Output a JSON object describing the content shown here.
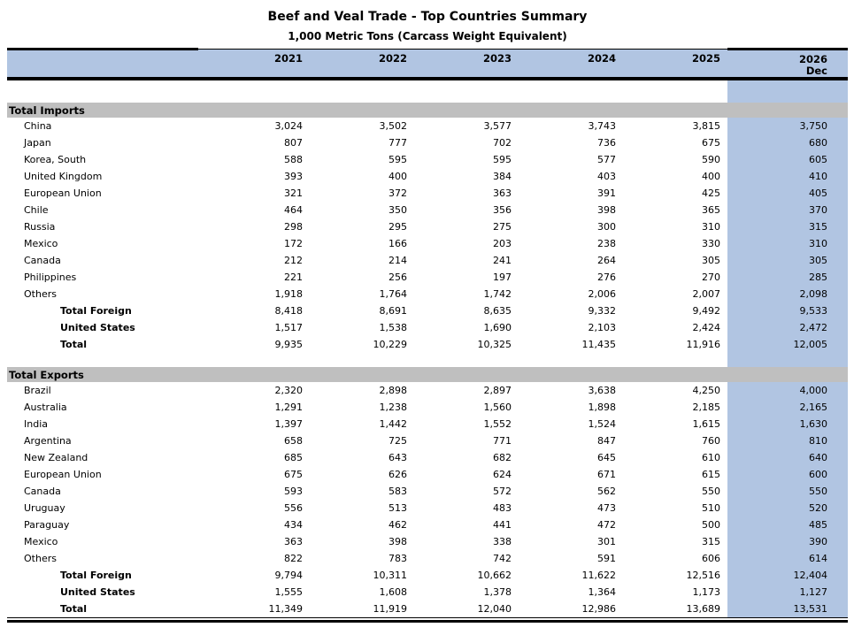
{
  "page": {
    "title": "Beef and Veal Trade - Top Countries Summary",
    "subtitle": "1,000 Metric Tons (Carcass Weight Equivalent)"
  },
  "table": {
    "columns": [
      "2021",
      "2022",
      "2023",
      "2024",
      "2025",
      "2026"
    ],
    "forecast_sublabel": "Dec",
    "sections": [
      {
        "label": "Total Imports",
        "rows": [
          {
            "label": "China",
            "style": "country",
            "values": [
              "3,024",
              "3,502",
              "3,577",
              "3,743",
              "3,815",
              "3,750"
            ]
          },
          {
            "label": "Japan",
            "style": "country",
            "values": [
              "807",
              "777",
              "702",
              "736",
              "675",
              "680"
            ]
          },
          {
            "label": "Korea, South",
            "style": "country",
            "values": [
              "588",
              "595",
              "595",
              "577",
              "590",
              "605"
            ]
          },
          {
            "label": "United Kingdom",
            "style": "country",
            "values": [
              "393",
              "400",
              "384",
              "403",
              "400",
              "410"
            ]
          },
          {
            "label": "European Union",
            "style": "country",
            "values": [
              "321",
              "372",
              "363",
              "391",
              "425",
              "405"
            ]
          },
          {
            "label": "Chile",
            "style": "country",
            "values": [
              "464",
              "350",
              "356",
              "398",
              "365",
              "370"
            ]
          },
          {
            "label": "Russia",
            "style": "country",
            "values": [
              "298",
              "295",
              "275",
              "300",
              "310",
              "315"
            ]
          },
          {
            "label": "Mexico",
            "style": "country",
            "values": [
              "172",
              "166",
              "203",
              "238",
              "330",
              "310"
            ]
          },
          {
            "label": "Canada",
            "style": "country",
            "values": [
              "212",
              "214",
              "241",
              "264",
              "305",
              "305"
            ]
          },
          {
            "label": "Philippines",
            "style": "country",
            "values": [
              "221",
              "256",
              "197",
              "276",
              "270",
              "285"
            ]
          },
          {
            "label": "Others",
            "style": "country",
            "values": [
              "1,918",
              "1,764",
              "1,742",
              "2,006",
              "2,007",
              "2,098"
            ]
          },
          {
            "label": "Total Foreign",
            "style": "total",
            "values": [
              "8,418",
              "8,691",
              "8,635",
              "9,332",
              "9,492",
              "9,533"
            ]
          },
          {
            "label": "United States",
            "style": "total",
            "values": [
              "1,517",
              "1,538",
              "1,690",
              "2,103",
              "2,424",
              "2,472"
            ]
          },
          {
            "label": "Total",
            "style": "total",
            "values": [
              "9,935",
              "10,229",
              "10,325",
              "11,435",
              "11,916",
              "12,005"
            ]
          }
        ]
      },
      {
        "label": "Total Exports",
        "rows": [
          {
            "label": "Brazil",
            "style": "country",
            "values": [
              "2,320",
              "2,898",
              "2,897",
              "3,638",
              "4,250",
              "4,000"
            ]
          },
          {
            "label": "Australia",
            "style": "country",
            "values": [
              "1,291",
              "1,238",
              "1,560",
              "1,898",
              "2,185",
              "2,165"
            ]
          },
          {
            "label": "India",
            "style": "country",
            "values": [
              "1,397",
              "1,442",
              "1,552",
              "1,524",
              "1,615",
              "1,630"
            ]
          },
          {
            "label": "Argentina",
            "style": "country",
            "values": [
              "658",
              "725",
              "771",
              "847",
              "760",
              "810"
            ]
          },
          {
            "label": "New Zealand",
            "style": "country",
            "values": [
              "685",
              "643",
              "682",
              "645",
              "610",
              "640"
            ]
          },
          {
            "label": "European Union",
            "style": "country",
            "values": [
              "675",
              "626",
              "624",
              "671",
              "615",
              "600"
            ]
          },
          {
            "label": "Canada",
            "style": "country",
            "values": [
              "593",
              "583",
              "572",
              "562",
              "550",
              "550"
            ]
          },
          {
            "label": "Uruguay",
            "style": "country",
            "values": [
              "556",
              "513",
              "483",
              "473",
              "510",
              "520"
            ]
          },
          {
            "label": "Paraguay",
            "style": "country",
            "values": [
              "434",
              "462",
              "441",
              "472",
              "500",
              "485"
            ]
          },
          {
            "label": "Mexico",
            "style": "country",
            "values": [
              "363",
              "398",
              "338",
              "301",
              "315",
              "390"
            ]
          },
          {
            "label": "Others",
            "style": "country",
            "values": [
              "822",
              "783",
              "742",
              "591",
              "606",
              "614"
            ]
          },
          {
            "label": "Total Foreign",
            "style": "total",
            "values": [
              "9,794",
              "10,311",
              "10,662",
              "11,622",
              "12,516",
              "12,404"
            ]
          },
          {
            "label": "United States",
            "style": "total",
            "values": [
              "1,555",
              "1,608",
              "1,378",
              "1,364",
              "1,173",
              "1,127"
            ]
          },
          {
            "label": "Total",
            "style": "total",
            "values": [
              "11,349",
              "11,919",
              "12,040",
              "12,986",
              "13,689",
              "13,531"
            ]
          }
        ]
      }
    ]
  },
  "colors": {
    "highlight_column_bg": "#B1C5E2",
    "section_band_bg": "#BFBFBF",
    "border": "#000000"
  }
}
